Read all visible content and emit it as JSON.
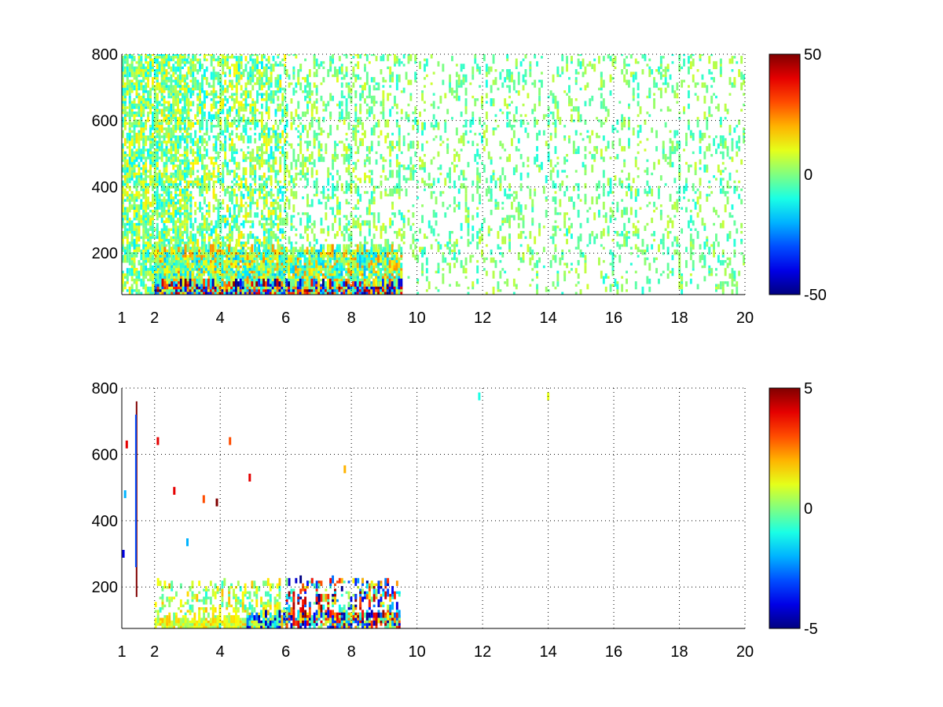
{
  "chart_data": [
    {
      "type": "heatmap",
      "title": "",
      "xlabel": "",
      "ylabel": "",
      "xlim": [
        1,
        20
      ],
      "ylim": [
        75,
        800
      ],
      "x_ticks": [
        "1",
        "2",
        "4",
        "6",
        "8",
        "10",
        "12",
        "14",
        "16",
        "18",
        "20"
      ],
      "y_ticks": [
        "200",
        "400",
        "600",
        "800"
      ],
      "grid": true,
      "colormap": "jet",
      "colorbar": {
        "min": -50,
        "max": 50,
        "ticks": [
          "50",
          "0",
          "-50"
        ]
      },
      "note": "dense scattered values; low-y band (75-210) holds strong values up to x≈9.5, sparse near-zero values above",
      "regions": [
        {
          "x": [
            1.0,
            3.0
          ],
          "y": [
            75,
            800
          ],
          "density": 0.6,
          "value_range": [
            -15,
            15
          ]
        },
        {
          "x": [
            3.0,
            6.0
          ],
          "y": [
            75,
            800
          ],
          "density": 0.35,
          "value_range": [
            -15,
            15
          ]
        },
        {
          "x": [
            6.0,
            9.5
          ],
          "y": [
            75,
            800
          ],
          "density": 0.18,
          "value_range": [
            -10,
            10
          ]
        },
        {
          "x": [
            9.5,
            20.0
          ],
          "y": [
            75,
            800
          ],
          "density": 0.12,
          "value_range": [
            -10,
            8
          ]
        },
        {
          "x": [
            2.0,
            9.5
          ],
          "y": [
            75,
            210
          ],
          "density": 0.75,
          "value_range": [
            -20,
            25
          ]
        },
        {
          "x": [
            2.0,
            9.5
          ],
          "y": [
            75,
            105
          ],
          "density": 0.95,
          "value_range": [
            -50,
            50
          ]
        }
      ]
    },
    {
      "type": "heatmap",
      "title": "",
      "xlabel": "",
      "ylabel": "",
      "xlim": [
        1,
        20
      ],
      "ylim": [
        75,
        800
      ],
      "x_ticks": [
        "1",
        "2",
        "4",
        "6",
        "8",
        "10",
        "12",
        "14",
        "16",
        "18",
        "20"
      ],
      "y_ticks": [
        "200",
        "400",
        "600",
        "800"
      ],
      "grid": true,
      "colormap": "jet",
      "colorbar": {
        "min": -5,
        "max": 5,
        "ticks": [
          "5",
          "0",
          "-5"
        ]
      },
      "note": "mostly empty; values concentrated at low y between x≈2 and x≈9.5 plus a narrow vertical streak near x≈1.5",
      "regions": [
        {
          "x": [
            2.0,
            6.0
          ],
          "y": [
            75,
            210
          ],
          "density": 0.25,
          "value_range": [
            -1,
            2
          ]
        },
        {
          "x": [
            2.0,
            6.0
          ],
          "y": [
            75,
            95
          ],
          "density": 0.9,
          "value_range": [
            0,
            2
          ]
        },
        {
          "x": [
            4.8,
            6.0
          ],
          "y": [
            75,
            110
          ],
          "density": 0.6,
          "value_range": [
            -5,
            1
          ]
        },
        {
          "x": [
            6.0,
            9.5
          ],
          "y": [
            75,
            215
          ],
          "density": 0.3,
          "value_range": [
            -5,
            5
          ]
        },
        {
          "x": [
            6.0,
            9.5
          ],
          "y": [
            75,
            110
          ],
          "density": 0.7,
          "value_range": [
            -5,
            5
          ]
        }
      ],
      "streaks": [
        {
          "x": 1.45,
          "y": [
            170,
            760
          ],
          "value": 5
        },
        {
          "x": 1.43,
          "y": [
            260,
            720
          ],
          "value": -3
        }
      ],
      "points": [
        {
          "x": 1.15,
          "y": 630,
          "value": 4
        },
        {
          "x": 1.1,
          "y": 480,
          "value": -2
        },
        {
          "x": 1.05,
          "y": 300,
          "value": -4
        },
        {
          "x": 2.1,
          "y": 640,
          "value": 4
        },
        {
          "x": 2.6,
          "y": 490,
          "value": 4
        },
        {
          "x": 3.5,
          "y": 465,
          "value": 3
        },
        {
          "x": 3.9,
          "y": 455,
          "value": 5
        },
        {
          "x": 3.0,
          "y": 335,
          "value": -2
        },
        {
          "x": 4.3,
          "y": 640,
          "value": 3
        },
        {
          "x": 4.9,
          "y": 530,
          "value": 4
        },
        {
          "x": 7.8,
          "y": 555,
          "value": 2
        },
        {
          "x": 11.9,
          "y": 775,
          "value": -1
        },
        {
          "x": 14.0,
          "y": 775,
          "value": 1
        }
      ]
    }
  ]
}
